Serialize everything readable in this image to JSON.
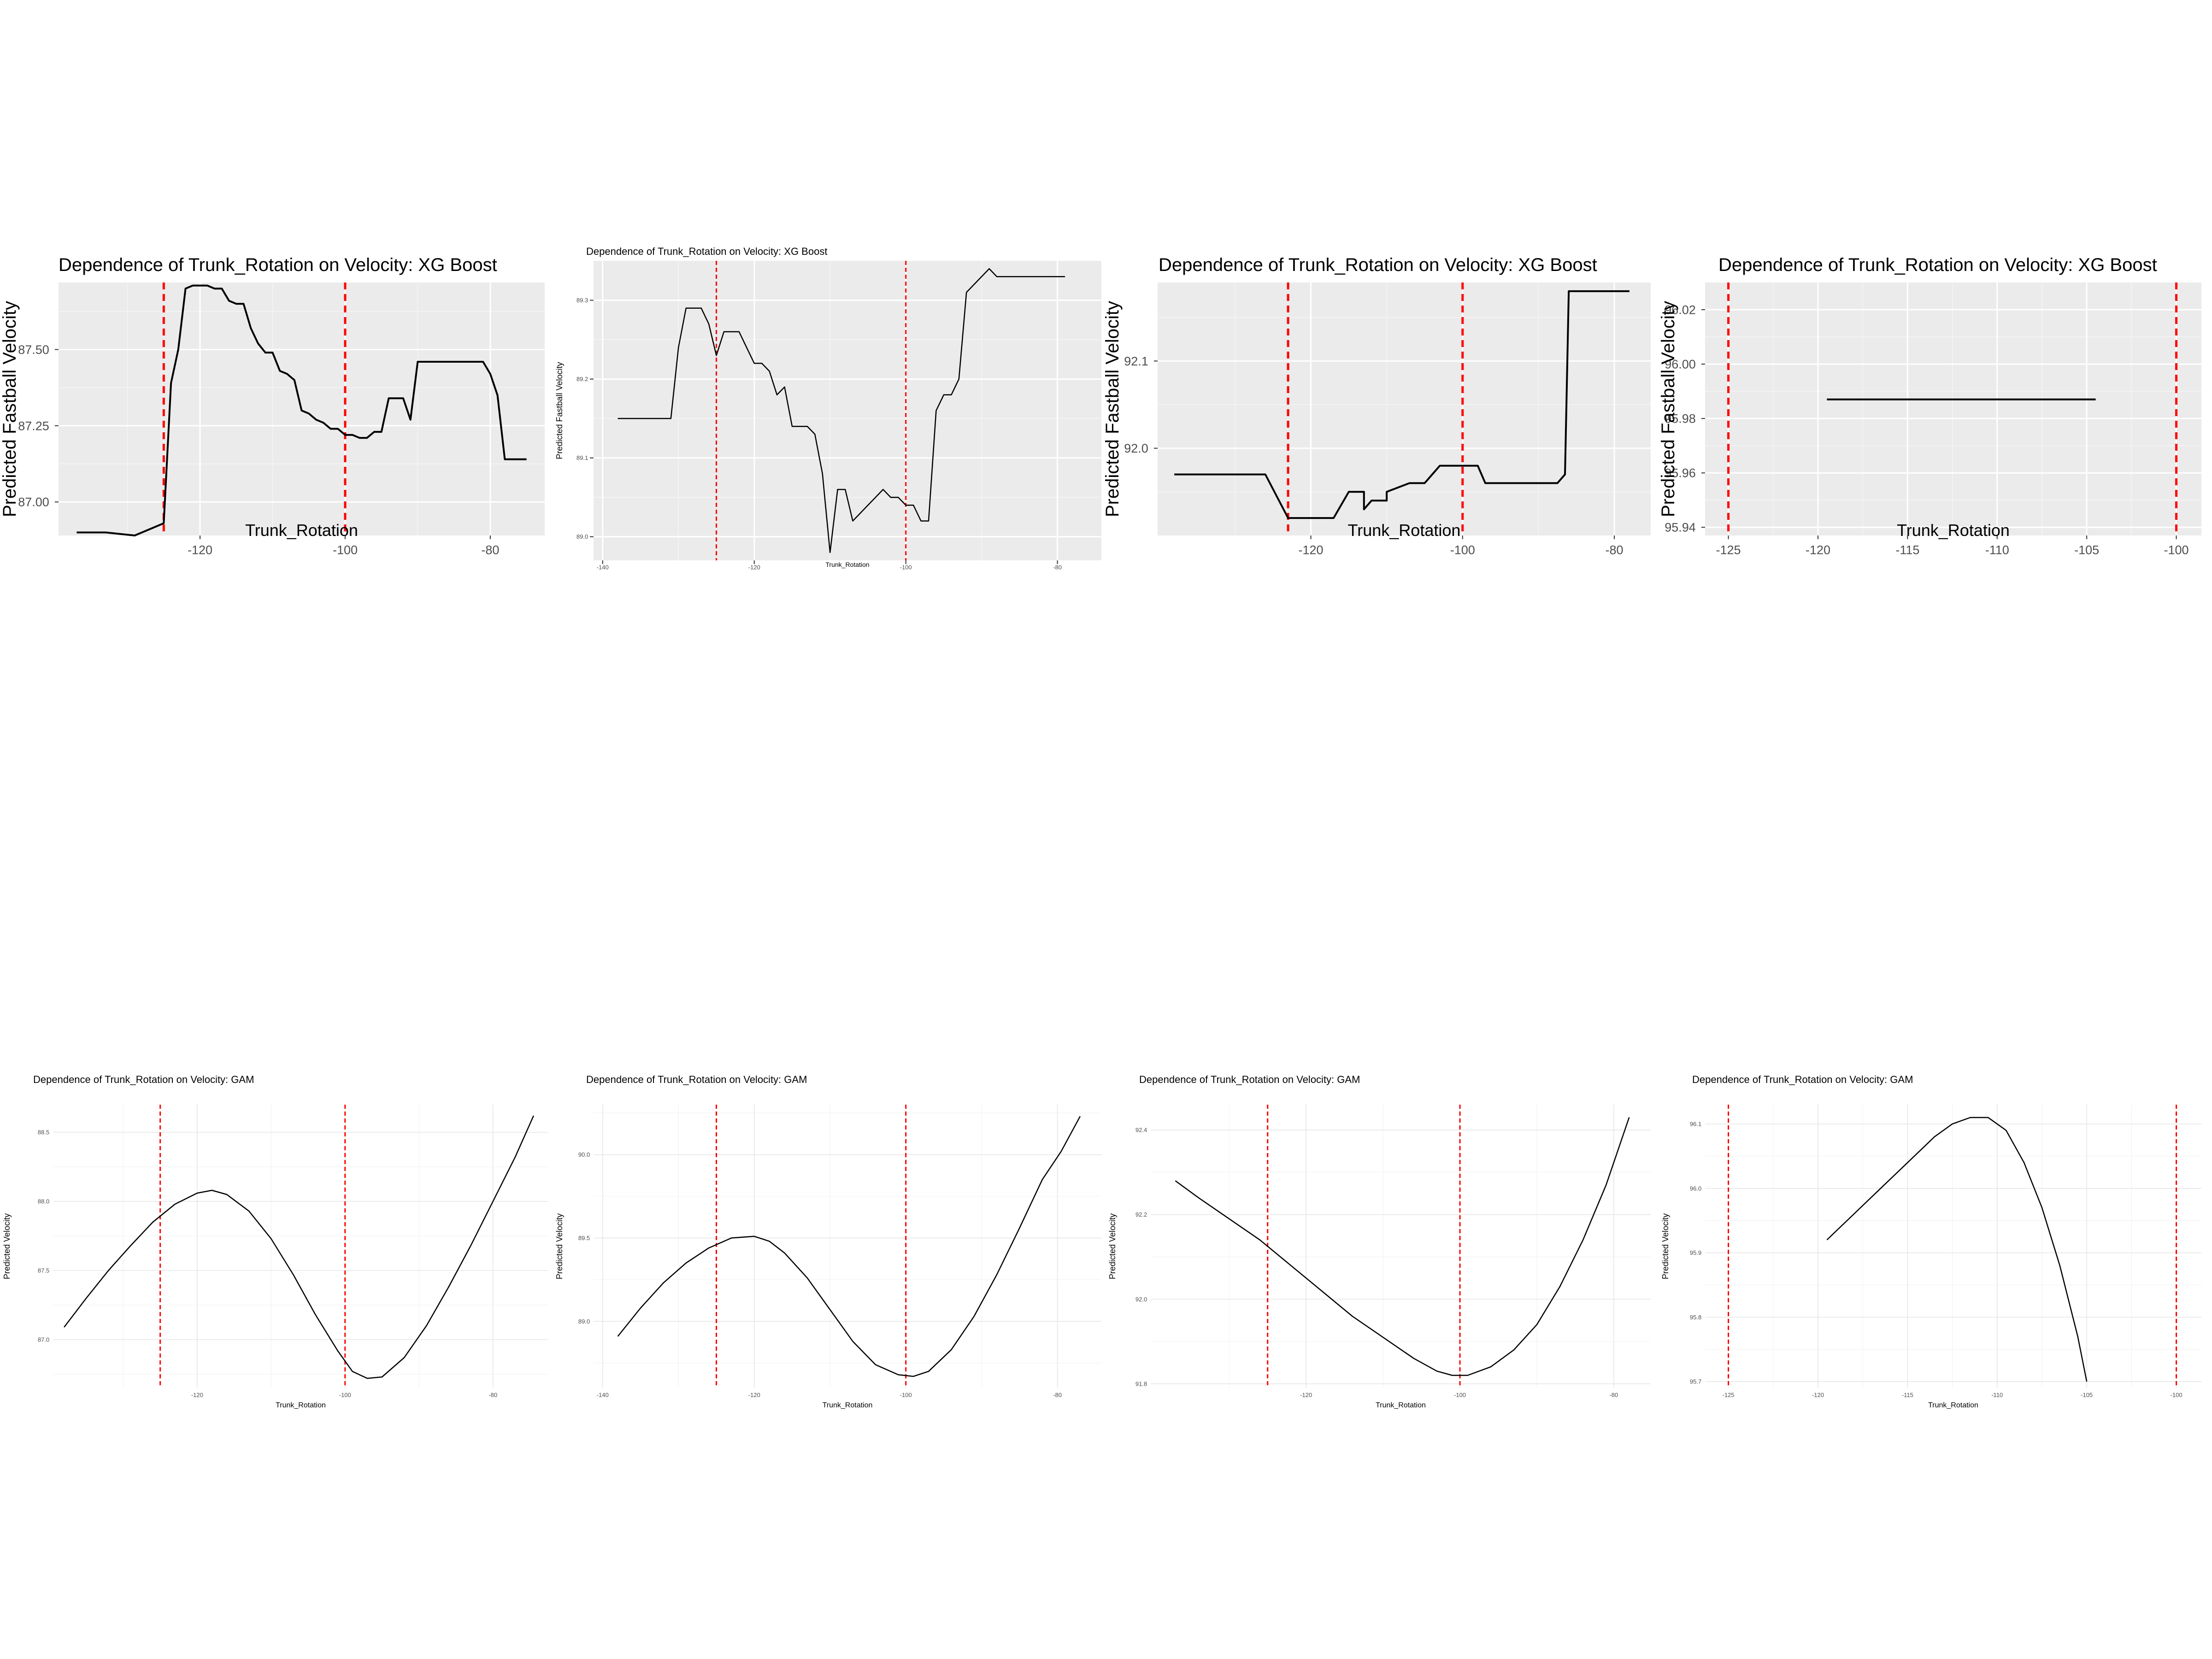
{
  "colors": {
    "panel_gray": "#ebebeb",
    "grid_major": "#ffffff",
    "line": "#000000",
    "vline": "#ff0000",
    "minimal_grid": "#e6e6e6",
    "text": "#000000",
    "tick_text": "#4d4d4d"
  },
  "chart_data": [
    {
      "type": "line",
      "style": "gray",
      "title": "Dependence of Trunk_Rotation on Velocity: XG Boost",
      "xlabel": "Trunk_Rotation",
      "ylabel": "Predicted Fastball Velocity",
      "xlim": [
        -139.5,
        -72.5
      ],
      "ylim": [
        86.89,
        87.72
      ],
      "xticks": [
        -120,
        -100,
        -80
      ],
      "xtick_labels": [
        "-120",
        "-100",
        "-80"
      ],
      "yticks": [
        87.0,
        87.25,
        87.5
      ],
      "ytick_labels": [
        "87.00",
        "87.25",
        "87.50"
      ],
      "grid": true,
      "vlines": [
        -125,
        -100
      ],
      "x": [
        -137,
        -133,
        -129,
        -125,
        -124,
        -123,
        -122,
        -121,
        -119,
        -118,
        -117,
        -116,
        -115,
        -114,
        -113,
        -112,
        -111,
        -110,
        -109,
        -108,
        -107,
        -106,
        -105,
        -104,
        -103,
        -102,
        -101,
        -100,
        -99,
        -98,
        -97,
        -96,
        -95,
        -94,
        -93,
        -92,
        -91,
        -90,
        -89,
        -88,
        -87,
        -86,
        -82,
        -81,
        -80,
        -79,
        -78,
        -76,
        -75
      ],
      "y": [
        86.9,
        86.9,
        86.89,
        86.93,
        87.39,
        87.5,
        87.7,
        87.71,
        87.71,
        87.7,
        87.7,
        87.66,
        87.65,
        87.65,
        87.57,
        87.52,
        87.49,
        87.49,
        87.43,
        87.42,
        87.4,
        87.3,
        87.29,
        87.27,
        87.26,
        87.24,
        87.24,
        87.22,
        87.22,
        87.21,
        87.21,
        87.23,
        87.23,
        87.34,
        87.34,
        87.34,
        87.27,
        87.46,
        87.46,
        87.46,
        87.46,
        87.46,
        87.46,
        87.46,
        87.42,
        87.35,
        87.14,
        87.14,
        87.14
      ]
    },
    {
      "type": "line",
      "style": "gray",
      "title": "Dependence of Trunk_Rotation on Velocity: XG Boost",
      "xlabel": "Trunk_Rotation",
      "ylabel": "Predicted Fastball Velocity",
      "xlim": [
        -141.2,
        -74.2
      ],
      "ylim": [
        88.97,
        89.35
      ],
      "xticks": [
        -140,
        -120,
        -100,
        -80
      ],
      "xtick_labels": [
        "-140",
        "-120",
        "-100",
        "-80"
      ],
      "yticks": [
        89.0,
        89.1,
        89.2,
        89.3
      ],
      "ytick_labels": [
        "89.0",
        "89.1",
        "89.2",
        "89.3"
      ],
      "grid": true,
      "vlines": [
        -125,
        -100
      ],
      "x": [
        -138,
        -131,
        -130,
        -129,
        -127,
        -126,
        -125,
        -124,
        -122,
        -121,
        -120,
        -119,
        -118,
        -117,
        -116,
        -115,
        -114,
        -113,
        -112,
        -111,
        -110,
        -109,
        -108,
        -107,
        -106,
        -105,
        -104,
        -103,
        -102,
        -101,
        -100,
        -99,
        -98,
        -97,
        -96,
        -95,
        -94,
        -93,
        -92,
        -91,
        -90,
        -89,
        -88,
        -87,
        -86,
        -85,
        -84,
        -83,
        -82,
        -79
      ],
      "y": [
        89.15,
        89.15,
        89.24,
        89.29,
        89.29,
        89.27,
        89.23,
        89.26,
        89.26,
        89.24,
        89.22,
        89.22,
        89.21,
        89.18,
        89.19,
        89.14,
        89.14,
        89.14,
        89.13,
        89.08,
        88.98,
        89.06,
        89.06,
        89.02,
        89.03,
        89.04,
        89.05,
        89.06,
        89.05,
        89.05,
        89.04,
        89.04,
        89.02,
        89.02,
        89.16,
        89.18,
        89.18,
        89.2,
        89.31,
        89.32,
        89.33,
        89.34,
        89.33,
        89.33,
        89.33,
        89.33,
        89.33,
        89.33,
        89.33,
        89.33
      ]
    },
    {
      "type": "line",
      "style": "gray",
      "title": "Dependence of Trunk_Rotation on Velocity: XG Boost",
      "xlabel": "Trunk_Rotation",
      "ylabel": "Predicted Fastball Velocity",
      "xlim": [
        -140.2,
        -75.2
      ],
      "ylim": [
        91.9,
        92.19
      ],
      "xticks": [
        -120,
        -100,
        -80
      ],
      "xtick_labels": [
        "-120",
        "-100",
        "-80"
      ],
      "yticks": [
        92.0,
        92.1
      ],
      "ytick_labels": [
        "92.0",
        "92.1"
      ],
      "grid": true,
      "vlines": [
        -123,
        -100
      ],
      "x": [
        -138,
        -133,
        -126,
        -123,
        -117,
        -117,
        -115,
        -113,
        -113,
        -112,
        -110,
        -110,
        -107,
        -105,
        -104,
        -103,
        -101,
        -100,
        -98,
        -97,
        -96,
        -92,
        -90,
        -88,
        -87.5,
        -86.5,
        -86,
        -78
      ],
      "y": [
        91.97,
        91.97,
        91.97,
        91.92,
        91.92,
        91.92,
        91.95,
        91.95,
        91.93,
        91.94,
        91.94,
        91.95,
        91.96,
        91.96,
        91.97,
        91.98,
        91.98,
        91.98,
        91.98,
        91.96,
        91.96,
        91.96,
        91.96,
        91.96,
        91.96,
        91.97,
        92.18,
        92.18
      ]
    },
    {
      "type": "line",
      "style": "gray",
      "title": "Dependence of Trunk_Rotation on Velocity: XG Boost",
      "xlabel": "Trunk_Rotation",
      "ylabel": "Predicted Fastball Velocity",
      "xlim": [
        -126.3,
        -98.6
      ],
      "ylim": [
        95.937,
        96.03
      ],
      "xticks": [
        -125,
        -120,
        -115,
        -110,
        -105,
        -100
      ],
      "xtick_labels": [
        "-125",
        "-120",
        "-115",
        "-110",
        "-105",
        "-100"
      ],
      "yticks": [
        95.94,
        95.96,
        95.98,
        96.0,
        96.02
      ],
      "ytick_labels": [
        "95.94",
        "95.96",
        "95.98",
        "96.00",
        "96.02"
      ],
      "grid": true,
      "vlines": [
        -125,
        -100
      ],
      "x": [
        -119.5,
        -104.5
      ],
      "y": [
        95.987,
        95.987
      ]
    },
    {
      "type": "line",
      "style": "minimal",
      "title": "Dependence of Trunk_Rotation on Velocity: GAM",
      "xlabel": "Trunk_Rotation",
      "ylabel": "Predicted Velocity",
      "xlim": [
        -139.5,
        -72.5
      ],
      "ylim": [
        86.65,
        88.7
      ],
      "xticks": [
        -120,
        -100,
        -80
      ],
      "xtick_labels": [
        "-120",
        "-100",
        "-80"
      ],
      "yticks": [
        87.0,
        87.5,
        88.0,
        88.5
      ],
      "ytick_labels": [
        "87.0",
        "87.5",
        "88.0",
        "88.5"
      ],
      "grid": true,
      "vlines": [
        -125,
        -100
      ],
      "x": [
        -138,
        -135,
        -132,
        -129,
        -126,
        -123,
        -120,
        -118,
        -116,
        -113,
        -110,
        -107,
        -104,
        -101,
        -99,
        -97,
        -95,
        -92,
        -89,
        -86,
        -83,
        -80,
        -77,
        -74.5
      ],
      "y": [
        87.09,
        87.3,
        87.5,
        87.68,
        87.85,
        87.98,
        88.06,
        88.08,
        88.05,
        87.93,
        87.73,
        87.47,
        87.18,
        86.92,
        86.77,
        86.72,
        86.73,
        86.87,
        87.1,
        87.38,
        87.68,
        88.0,
        88.32,
        88.62
      ]
    },
    {
      "type": "line",
      "style": "minimal",
      "title": "Dependence of Trunk_Rotation on Velocity: GAM",
      "xlabel": "Trunk_Rotation",
      "ylabel": "Predicted Velocity",
      "xlim": [
        -141.2,
        -74.2
      ],
      "ylim": [
        88.6,
        90.3
      ],
      "xticks": [
        -140,
        -120,
        -100,
        -80
      ],
      "xtick_labels": [
        "-140",
        "-120",
        "-100",
        "-80"
      ],
      "yticks": [
        89.0,
        89.5,
        90.0
      ],
      "ytick_labels": [
        "89.0",
        "89.5",
        "90.0"
      ],
      "grid": true,
      "vlines": [
        -125,
        -100
      ],
      "x": [
        -138,
        -135,
        -132,
        -129,
        -126,
        -123,
        -120,
        -118,
        -116,
        -113,
        -110,
        -107,
        -104,
        -101,
        -99,
        -97,
        -94,
        -91,
        -88,
        -85,
        -82,
        -79.5,
        -77
      ],
      "y": [
        88.91,
        89.08,
        89.23,
        89.35,
        89.44,
        89.5,
        89.51,
        89.48,
        89.41,
        89.26,
        89.07,
        88.88,
        88.74,
        88.68,
        88.67,
        88.7,
        88.83,
        89.03,
        89.28,
        89.56,
        89.85,
        90.02,
        90.23
      ]
    },
    {
      "type": "line",
      "style": "minimal",
      "title": "Dependence of Trunk_Rotation on Velocity: GAM",
      "xlabel": "Trunk_Rotation",
      "ylabel": "Predicted Velocity",
      "xlim": [
        -140.2,
        -75.2
      ],
      "ylim": [
        91.79,
        92.46
      ],
      "xticks": [
        -120,
        -100,
        -80
      ],
      "xtick_labels": [
        "-120",
        "-100",
        "-80"
      ],
      "yticks": [
        91.8,
        92.0,
        92.2,
        92.4
      ],
      "ytick_labels": [
        "91.8",
        "92.0",
        "92.2",
        "92.4"
      ],
      "grid": true,
      "vlines": [
        -125,
        -100
      ],
      "x": [
        -137,
        -134,
        -130,
        -126,
        -122,
        -118,
        -114,
        -110,
        -106,
        -103,
        -101,
        -99,
        -96,
        -93,
        -90,
        -87,
        -84,
        -81,
        -78
      ],
      "y": [
        92.28,
        92.24,
        92.19,
        92.14,
        92.08,
        92.02,
        91.96,
        91.91,
        91.86,
        91.83,
        91.82,
        91.82,
        91.84,
        91.88,
        91.94,
        92.03,
        92.14,
        92.27,
        92.43
      ]
    },
    {
      "type": "line",
      "style": "minimal",
      "title": "Dependence of Trunk_Rotation on Velocity: GAM",
      "xlabel": "Trunk_Rotation",
      "ylabel": "Predicted Velocity",
      "xlim": [
        -126.3,
        -98.6
      ],
      "ylim": [
        95.69,
        96.13
      ],
      "xticks": [
        -125,
        -120,
        -115,
        -110,
        -105,
        -100
      ],
      "xtick_labels": [
        "-125",
        "-120",
        "-115",
        "-110",
        "-105",
        "-100"
      ],
      "yticks": [
        95.7,
        95.8,
        95.9,
        96.0,
        96.1
      ],
      "ytick_labels": [
        "95.7",
        "95.8",
        "95.9",
        "96.0",
        "96.1"
      ],
      "grid": true,
      "vlines": [
        -125,
        -100
      ],
      "x": [
        -119.5,
        -118,
        -116.5,
        -115,
        -113.5,
        -112.5,
        -111.5,
        -110.5,
        -109.5,
        -108.5,
        -107.5,
        -106.5,
        -105.5,
        -105
      ],
      "y": [
        95.92,
        95.96,
        96.0,
        96.04,
        96.08,
        96.1,
        96.11,
        96.11,
        96.09,
        96.04,
        95.97,
        95.88,
        95.77,
        95.7
      ]
    }
  ]
}
